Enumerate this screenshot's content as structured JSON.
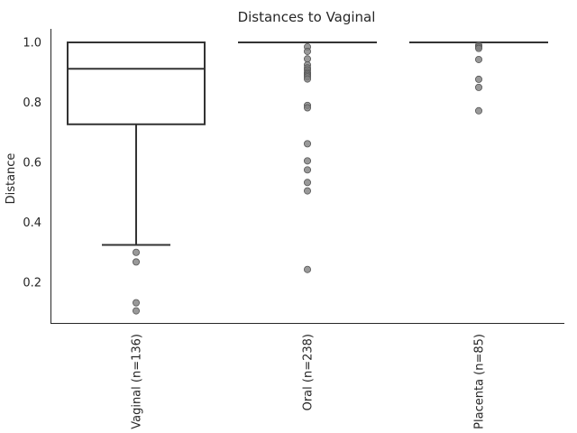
{
  "chart_data": {
    "type": "box",
    "title": "Distances to Vaginal",
    "xlabel": "",
    "ylabel": "Distance",
    "ylim": [
      0.05,
      1.04
    ],
    "yticks": [
      0.2,
      0.4,
      0.6,
      0.8,
      1.0
    ],
    "ytick_labels": [
      "0.2",
      "0.4",
      "0.6",
      "0.8",
      "1.0"
    ],
    "grid": false,
    "categories": [
      "Vaginal (n=136)",
      "Oral (n=238)",
      "Placenta (n=85)"
    ],
    "boxes": [
      {
        "name": "Vaginal (n=136)",
        "q1": 0.727,
        "median": 0.912,
        "q3": 1.0,
        "whisker_low": 0.325,
        "whisker_high": 1.0,
        "outliers": [
          0.3,
          0.268,
          0.132,
          0.105
        ]
      },
      {
        "name": "Oral (n=238)",
        "q1": 1.0,
        "median": 1.0,
        "q3": 1.0,
        "whisker_low": 1.0,
        "whisker_high": 1.0,
        "outliers": [
          0.985,
          0.97,
          0.945,
          0.925,
          0.915,
          0.908,
          0.9,
          0.895,
          0.89,
          0.885,
          0.878,
          0.79,
          0.782,
          0.662,
          0.605,
          0.575,
          0.533,
          0.505,
          0.243
        ]
      },
      {
        "name": "Placenta (n=85)",
        "q1": 1.0,
        "median": 1.0,
        "q3": 1.0,
        "whisker_low": 1.0,
        "whisker_high": 1.0,
        "outliers": [
          0.99,
          0.985,
          0.98,
          0.943,
          0.877,
          0.85,
          0.772
        ]
      }
    ]
  },
  "colors": {
    "box_edge": "#333333",
    "box_fill": "#ffffff",
    "outlier": "#808080",
    "text": "#262626"
  }
}
